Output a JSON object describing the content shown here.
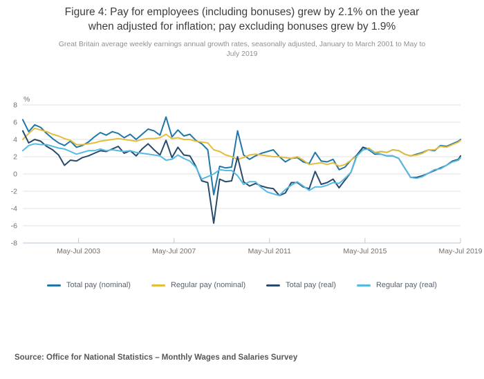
{
  "title": {
    "line1": "Figure 4: Pay for employees (including bonuses) grew by 2.1% on the year",
    "line2": "when adjusted for inflation; pay excluding bonuses grew by 1.9%"
  },
  "subtitle": {
    "line1": "Great Britain average weekly earnings annual growth rates, seasonally adjusted, January to March 2001 to May to",
    "line2": "July 2019"
  },
  "source": "Source: Office for National Statistics – Monthly Wages and Salaries Survey",
  "chart_data": {
    "type": "line",
    "title": "Great Britain average weekly earnings annual growth rates, seasonally adjusted, January to March 2001 to May to July 2019",
    "ylabel": "%",
    "xlabel": "",
    "grid": true,
    "legend_position": "bottom",
    "ylim": [
      -8,
      8
    ],
    "yticks": [
      8,
      6,
      4,
      2,
      0,
      -2,
      -4,
      -6,
      -8
    ],
    "xlim": [
      2001.083,
      2019.417
    ],
    "xticks": [
      {
        "label": "May-Jul 2003",
        "value": 2003.417
      },
      {
        "label": "May-Jul 2007",
        "value": 2007.417
      },
      {
        "label": "May-Jul 2011",
        "value": 2011.417
      },
      {
        "label": "May-Jul 2015",
        "value": 2015.417
      },
      {
        "label": "May-Jul 2019",
        "value": 2019.417
      }
    ],
    "x": [
      2001.08,
      2001.33,
      2001.58,
      2001.83,
      2002.08,
      2002.33,
      2002.58,
      2002.83,
      2003.08,
      2003.33,
      2003.58,
      2003.83,
      2004.08,
      2004.33,
      2004.58,
      2004.83,
      2005.08,
      2005.33,
      2005.58,
      2005.83,
      2006.08,
      2006.33,
      2006.58,
      2006.83,
      2007.08,
      2007.33,
      2007.58,
      2007.83,
      2008.08,
      2008.33,
      2008.58,
      2008.83,
      2009.08,
      2009.33,
      2009.58,
      2009.83,
      2010.08,
      2010.33,
      2010.58,
      2010.83,
      2011.08,
      2011.33,
      2011.58,
      2011.83,
      2012.08,
      2012.33,
      2012.58,
      2012.83,
      2013.08,
      2013.33,
      2013.58,
      2013.83,
      2014.08,
      2014.33,
      2014.58,
      2014.83,
      2015.08,
      2015.33,
      2015.58,
      2015.83,
      2016.08,
      2016.33,
      2016.58,
      2016.83,
      2017.08,
      2017.33,
      2017.58,
      2017.83,
      2018.08,
      2018.33,
      2018.58,
      2018.83,
      2019.08,
      2019.33,
      2019.42
    ],
    "series": [
      {
        "name": "Total pay (nominal)",
        "color": "#2076a8",
        "values": [
          6.3,
          4.9,
          5.7,
          5.4,
          4.7,
          4.1,
          3.6,
          3.3,
          3.8,
          3.1,
          3.3,
          3.7,
          4.3,
          4.8,
          4.5,
          4.9,
          4.7,
          4.2,
          4.6,
          4.0,
          4.6,
          5.2,
          5.0,
          4.5,
          6.6,
          4.3,
          5.1,
          4.4,
          4.6,
          3.9,
          3.5,
          2.8,
          -2.4,
          0.9,
          0.7,
          0.8,
          5.0,
          2.2,
          1.7,
          2.1,
          2.4,
          2.6,
          2.8,
          2.0,
          1.4,
          1.8,
          1.9,
          1.4,
          1.2,
          2.5,
          1.5,
          1.4,
          1.7,
          0.5,
          0.8,
          1.6,
          2.2,
          3.1,
          2.9,
          2.4,
          2.6,
          2.5,
          2.8,
          2.7,
          2.3,
          2.1,
          2.3,
          2.5,
          2.8,
          2.7,
          3.3,
          3.2,
          3.5,
          3.8,
          4.0
        ]
      },
      {
        "name": "Regular pay (nominal)",
        "color": "#e5bd3c",
        "values": [
          4.0,
          4.7,
          5.3,
          5.1,
          4.9,
          4.6,
          4.4,
          4.1,
          3.9,
          3.4,
          3.4,
          3.5,
          3.6,
          3.8,
          3.9,
          4.0,
          4.1,
          4.0,
          3.9,
          3.8,
          4.0,
          4.1,
          4.1,
          4.2,
          4.6,
          4.1,
          4.2,
          4.0,
          4.0,
          3.8,
          3.7,
          3.6,
          2.8,
          2.6,
          2.2,
          2.0,
          1.7,
          1.9,
          2.2,
          2.3,
          2.2,
          2.1,
          2.0,
          2.0,
          1.9,
          1.8,
          2.0,
          1.6,
          1.1,
          1.2,
          1.3,
          1.1,
          1.3,
          0.9,
          1.1,
          1.6,
          2.1,
          2.8,
          3.0,
          2.5,
          2.6,
          2.5,
          2.8,
          2.7,
          2.3,
          2.1,
          2.2,
          2.4,
          2.8,
          2.8,
          3.2,
          3.1,
          3.4,
          3.7,
          3.9
        ]
      },
      {
        "name": "Total pay (real)",
        "color": "#274a6d",
        "values": [
          5.0,
          3.6,
          4.0,
          3.8,
          3.2,
          2.8,
          2.2,
          1.0,
          1.6,
          1.5,
          1.9,
          2.1,
          2.4,
          2.7,
          2.6,
          2.9,
          3.2,
          2.4,
          2.7,
          2.1,
          2.9,
          3.5,
          2.8,
          2.2,
          3.9,
          1.9,
          3.1,
          2.2,
          2.1,
          0.9,
          -0.8,
          -1.0,
          -5.7,
          -0.6,
          -0.9,
          -0.8,
          2.0,
          -0.9,
          -1.4,
          -1.1,
          -1.4,
          -1.6,
          -1.7,
          -2.5,
          -2.2,
          -1.0,
          -1.0,
          -1.5,
          -1.7,
          0.3,
          -1.2,
          -1.0,
          -0.6,
          -1.6,
          -0.7,
          0.2,
          2.2,
          3.1,
          2.8,
          2.3,
          2.3,
          2.1,
          2.1,
          1.8,
          0.7,
          -0.4,
          -0.4,
          -0.2,
          0.1,
          0.4,
          0.7,
          1.0,
          1.5,
          1.7,
          2.1
        ]
      },
      {
        "name": "Regular pay (real)",
        "color": "#55b9e4",
        "values": [
          2.7,
          3.3,
          3.5,
          3.4,
          3.4,
          3.2,
          3.0,
          2.9,
          2.6,
          2.3,
          2.5,
          2.7,
          2.7,
          2.9,
          2.7,
          2.8,
          2.7,
          2.6,
          2.7,
          2.5,
          2.4,
          2.3,
          2.2,
          2.1,
          1.6,
          1.7,
          2.2,
          1.8,
          1.5,
          0.8,
          -0.6,
          -0.3,
          0.0,
          0.5,
          0.4,
          0.4,
          -0.2,
          -1.2,
          -0.9,
          -0.9,
          -1.6,
          -2.1,
          -2.3,
          -2.5,
          -1.8,
          -1.3,
          -0.9,
          -1.4,
          -1.9,
          -1.5,
          -1.5,
          -1.3,
          -1.0,
          -1.1,
          -0.5,
          0.2,
          2.1,
          2.8,
          2.9,
          2.4,
          2.3,
          2.1,
          2.1,
          1.8,
          0.7,
          -0.4,
          -0.5,
          -0.3,
          0.1,
          0.5,
          0.6,
          1.0,
          1.4,
          1.6,
          1.9
        ]
      }
    ]
  },
  "style_colors": {
    "gridline": "#e2e2e2",
    "axis_line": "#b7c6d3",
    "tick_label": "#707070",
    "unit_label": "#6f6f6f"
  }
}
